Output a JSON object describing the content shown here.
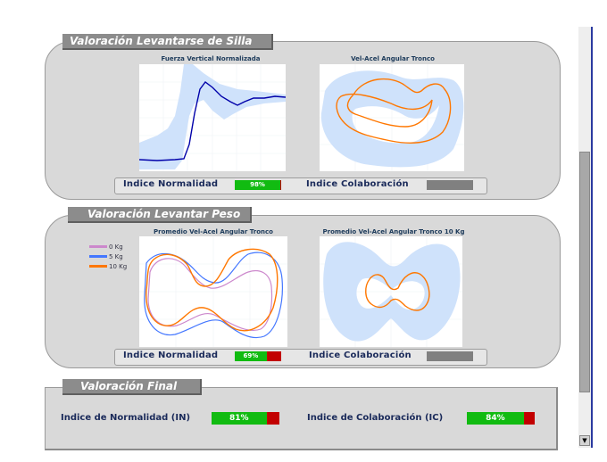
{
  "sections": {
    "chair": {
      "title": "Valoración Levantarse de Silla",
      "chart1_title": "Fuerza Vertical Normalizada",
      "chart2_title": "Vel-Acel Angular Tronco",
      "normalidad_label": "Indice Normalidad",
      "normalidad_value": "98%",
      "normalidad_fraction": 0.98,
      "colaboracion_label": "Indice Colaboración"
    },
    "weight": {
      "title": "Valoración Levantar Peso",
      "chart1_title": "Promedio Vel-Acel Angular Tronco",
      "chart2_title": "Promedio Vel-Acel Angular Tronco 10 Kg",
      "legend": [
        {
          "label": "0 Kg",
          "color": "#cc88cc"
        },
        {
          "label": "5 Kg",
          "color": "#4477ff"
        },
        {
          "label": "10 Kg",
          "color": "#ff7700"
        }
      ],
      "normalidad_label": "Indice Normalidad",
      "normalidad_value": "69%",
      "normalidad_fraction": 0.69,
      "colaboracion_label": "Indice Colaboración"
    },
    "final": {
      "title": "Valoración Final",
      "in_label": "Indice de Normalidad (IN)",
      "in_value": "81%",
      "in_fraction": 0.81,
      "ic_label": "Indice de Colaboración (IC)",
      "ic_value": "84%",
      "ic_fraction": 0.84
    }
  },
  "colors": {
    "band": "#cfe2fb",
    "mean_line": "#0000aa",
    "orange": "#ff7700",
    "meter_green": "#11bb11",
    "meter_red": "#c20000"
  }
}
